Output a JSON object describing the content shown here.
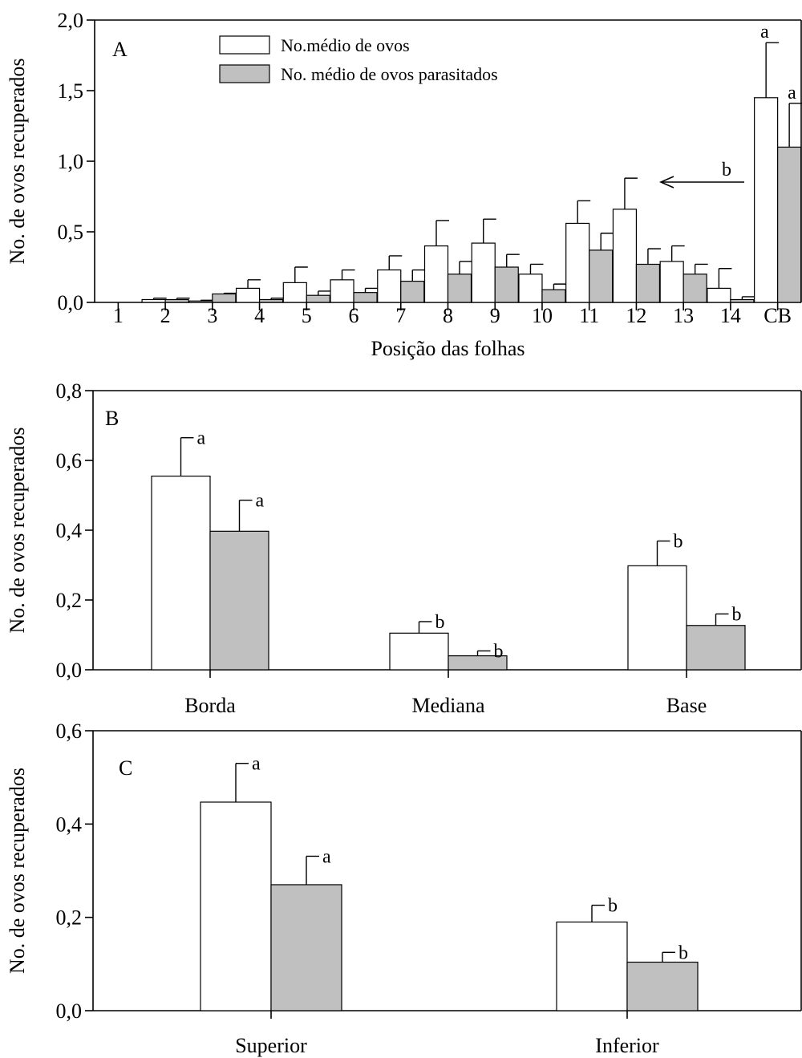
{
  "chart_data": [
    {
      "type": "bar",
      "panel": "A",
      "xlabel": "Posição das folhas",
      "ylabel": "No. de ovos recuperados",
      "ylim": [
        0,
        2.0
      ],
      "yticks": [
        "0,0",
        "0,5",
        "1,0",
        "1,5",
        "2,0"
      ],
      "categories": [
        "1",
        "2",
        "3",
        "4",
        "5",
        "6",
        "7",
        "8",
        "9",
        "10",
        "11",
        "12",
        "13",
        "14",
        "CB"
      ],
      "series": [
        {
          "name": "No.médio de ovos",
          "color": "#ffffff",
          "values": [
            0,
            0.02,
            0.01,
            0.1,
            0.14,
            0.16,
            0.23,
            0.4,
            0.42,
            0.2,
            0.56,
            0.66,
            0.29,
            0.1,
            1.45
          ],
          "errors": [
            0,
            0.01,
            0.005,
            0.06,
            0.11,
            0.07,
            0.1,
            0.18,
            0.17,
            0.07,
            0.16,
            0.22,
            0.11,
            0.14,
            0.39
          ],
          "labels": [
            "",
            "",
            "",
            "",
            "",
            "",
            "",
            "",
            "",
            "",
            "",
            "",
            "",
            "",
            "a"
          ]
        },
        {
          "name": "No. médio de ovos parasitados",
          "color": "#c0c0c0",
          "values": [
            0,
            0.02,
            0.06,
            0.02,
            0.05,
            0.07,
            0.15,
            0.2,
            0.25,
            0.09,
            0.37,
            0.27,
            0.2,
            0.02,
            1.1
          ],
          "errors": [
            0,
            0.01,
            0.005,
            0.01,
            0.03,
            0.03,
            0.08,
            0.09,
            0.09,
            0.04,
            0.12,
            0.11,
            0.07,
            0.02,
            0.31
          ],
          "labels": [
            "",
            "",
            "",
            "",
            "",
            "",
            "",
            "",
            "",
            "",
            "",
            "",
            "",
            "",
            "a"
          ]
        }
      ],
      "annotation": {
        "text": "b",
        "arrow": "pointing left toward position 12"
      },
      "legend": "top-left"
    },
    {
      "type": "bar",
      "panel": "B",
      "xlabel": "",
      "ylabel": "No. de ovos recuperados",
      "ylim": [
        0,
        0.8
      ],
      "yticks": [
        "0,0",
        "0,2",
        "0,4",
        "0,6",
        "0,8"
      ],
      "categories": [
        "Borda",
        "Mediana",
        "Base"
      ],
      "series": [
        {
          "name": "No.médio de ovos",
          "color": "#ffffff",
          "values": [
            0.555,
            0.105,
            0.298
          ],
          "errors": [
            0.11,
            0.033,
            0.071
          ],
          "labels": [
            "a",
            "b",
            "b"
          ]
        },
        {
          "name": "No. médio de ovos parasitados",
          "color": "#c0c0c0",
          "values": [
            0.397,
            0.04,
            0.127
          ],
          "errors": [
            0.089,
            0.014,
            0.033
          ],
          "labels": [
            "a",
            "b",
            "b"
          ]
        }
      ]
    },
    {
      "type": "bar",
      "panel": "C",
      "xlabel": "",
      "ylabel": "No. de ovos recuperados",
      "ylim": [
        0,
        0.6
      ],
      "yticks": [
        "0,0",
        "0,2",
        "0,4",
        "0,6"
      ],
      "categories": [
        "Superior",
        "Inferior"
      ],
      "series": [
        {
          "name": "No.médio de ovos",
          "color": "#ffffff",
          "values": [
            0.447,
            0.19
          ],
          "errors": [
            0.083,
            0.036
          ],
          "labels": [
            "a",
            "b"
          ]
        },
        {
          "name": "No. médio de ovos parasitados",
          "color": "#c0c0c0",
          "values": [
            0.27,
            0.104
          ],
          "errors": [
            0.061,
            0.021
          ],
          "labels": [
            "a",
            "b"
          ]
        }
      ]
    }
  ]
}
